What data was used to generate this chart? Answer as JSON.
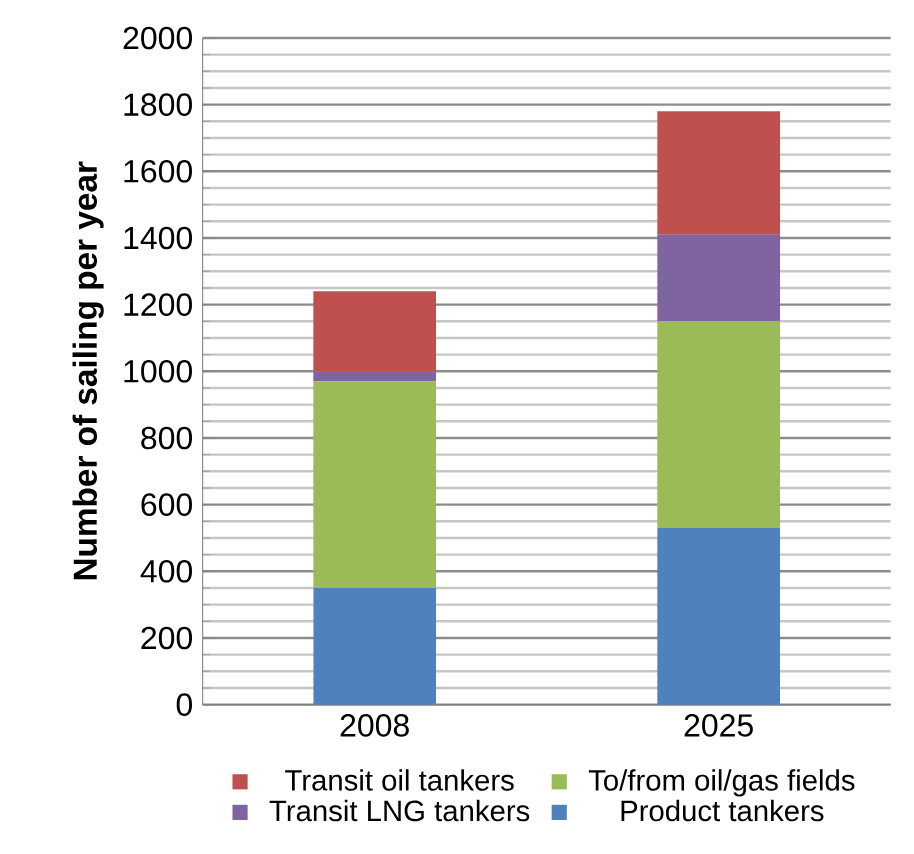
{
  "chart_data": {
    "type": "bar",
    "stacked": true,
    "ylabel": "Number of sailing per year",
    "categories": [
      "2008",
      "2025"
    ],
    "series": [
      {
        "name": "Product tankers",
        "color": "#4f81bd",
        "values": [
          350,
          530
        ]
      },
      {
        "name": "To/from oil/gas fields",
        "color": "#9bbb59",
        "values": [
          620,
          620
        ]
      },
      {
        "name": "Transit LNG tankers",
        "color": "#8064a2",
        "values": [
          30,
          260
        ]
      },
      {
        "name": "Transit oil tankers",
        "color": "#c0504d",
        "values": [
          240,
          370
        ]
      }
    ],
    "ylim": [
      0,
      2000
    ],
    "yticks": [
      0,
      200,
      400,
      600,
      800,
      1000,
      1200,
      1400,
      1600,
      1800,
      2000
    ],
    "grid": "y",
    "legend": "bottom"
  }
}
